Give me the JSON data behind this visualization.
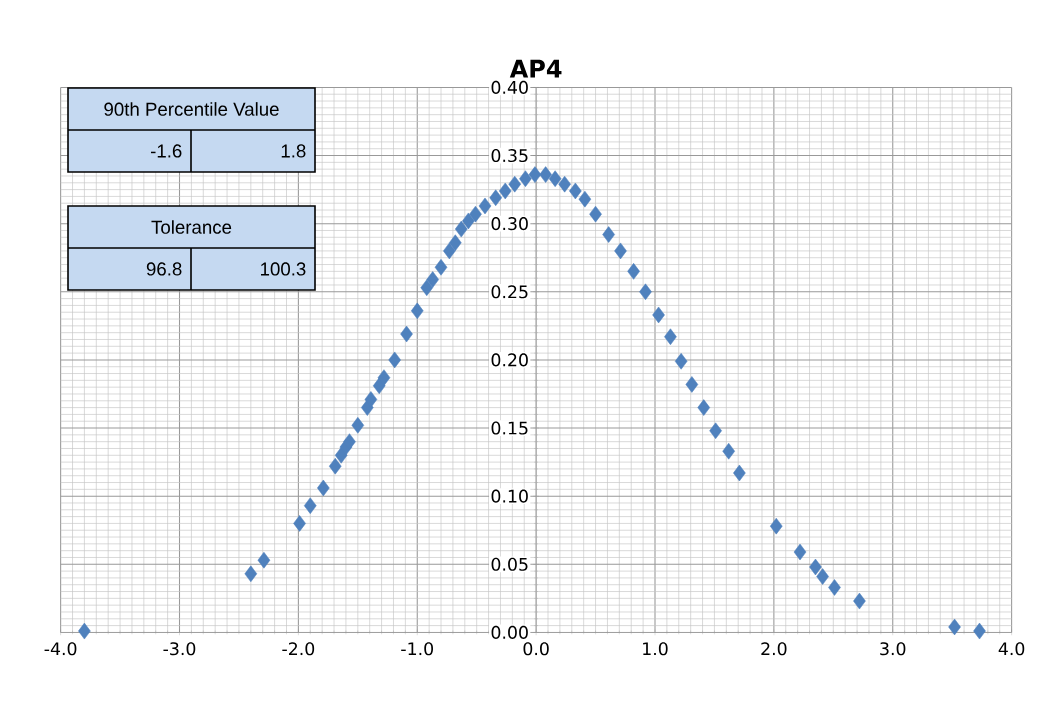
{
  "chart_data": {
    "type": "scatter",
    "title": "AP4",
    "x": [
      -3.8,
      -2.4,
      -2.29,
      -1.99,
      -1.9,
      -1.79,
      -1.69,
      -1.64,
      -1.6,
      -1.57,
      -1.5,
      -1.42,
      -1.39,
      -1.32,
      -1.28,
      -1.19,
      -1.09,
      -1.0,
      -0.92,
      -0.87,
      -0.8,
      -0.73,
      -0.68,
      -0.63,
      -0.57,
      -0.51,
      -0.43,
      -0.34,
      -0.26,
      -0.18,
      -0.09,
      -0.01,
      0.08,
      0.16,
      0.24,
      0.33,
      0.41,
      0.5,
      0.61,
      0.71,
      0.82,
      0.92,
      1.03,
      1.13,
      1.22,
      1.31,
      1.41,
      1.51,
      1.62,
      1.71,
      2.02,
      2.22,
      2.35,
      2.41,
      2.51,
      2.72,
      3.52,
      3.73
    ],
    "series": [
      {
        "color": "#4f81bd",
        "values": [
          0.001,
          0.043,
          0.053,
          0.08,
          0.093,
          0.106,
          0.122,
          0.13,
          0.136,
          0.14,
          0.152,
          0.165,
          0.171,
          0.181,
          0.187,
          0.2,
          0.219,
          0.236,
          0.253,
          0.259,
          0.268,
          0.28,
          0.286,
          0.296,
          0.302,
          0.307,
          0.313,
          0.319,
          0.324,
          0.329,
          0.333,
          0.336,
          0.336,
          0.333,
          0.329,
          0.324,
          0.318,
          0.307,
          0.292,
          0.28,
          0.265,
          0.25,
          0.233,
          0.217,
          0.199,
          0.182,
          0.165,
          0.148,
          0.133,
          0.117,
          0.078,
          0.059,
          0.048,
          0.041,
          0.033,
          0.023,
          0.004,
          0.001
        ]
      }
    ],
    "xlim": [
      -4,
      4
    ],
    "xticks": [
      {
        "value": -4,
        "label": "-4.0"
      },
      {
        "value": -3,
        "label": "-3.0"
      },
      {
        "value": -2,
        "label": "-2.0"
      },
      {
        "value": -1,
        "label": "-1.0"
      },
      {
        "value": 0,
        "label": "0.0"
      },
      {
        "value": 1,
        "label": "1.0"
      },
      {
        "value": 2,
        "label": "2.0"
      },
      {
        "value": 3,
        "label": "3.0"
      },
      {
        "value": 4,
        "label": "4.0"
      }
    ],
    "ylim": [
      0,
      0.4
    ],
    "yticks": [
      {
        "value": 0,
        "label": "0.00"
      },
      {
        "value": 0.05,
        "label": "0.05"
      },
      {
        "value": 0.1,
        "label": "0.10"
      },
      {
        "value": 0.15,
        "label": "0.15"
      },
      {
        "value": 0.2,
        "label": "0.20"
      },
      {
        "value": 0.25,
        "label": "0.25"
      },
      {
        "value": 0.3,
        "label": "0.30"
      },
      {
        "value": 0.35,
        "label": "0.35"
      },
      {
        "value": 0.4,
        "label": "0.40"
      }
    ],
    "grid": true,
    "marker": "diamond",
    "annotations": [
      "90th Percentile Value",
      "-1.6",
      "1.8",
      "Tolerance",
      "96.8",
      "100.3"
    ]
  }
}
